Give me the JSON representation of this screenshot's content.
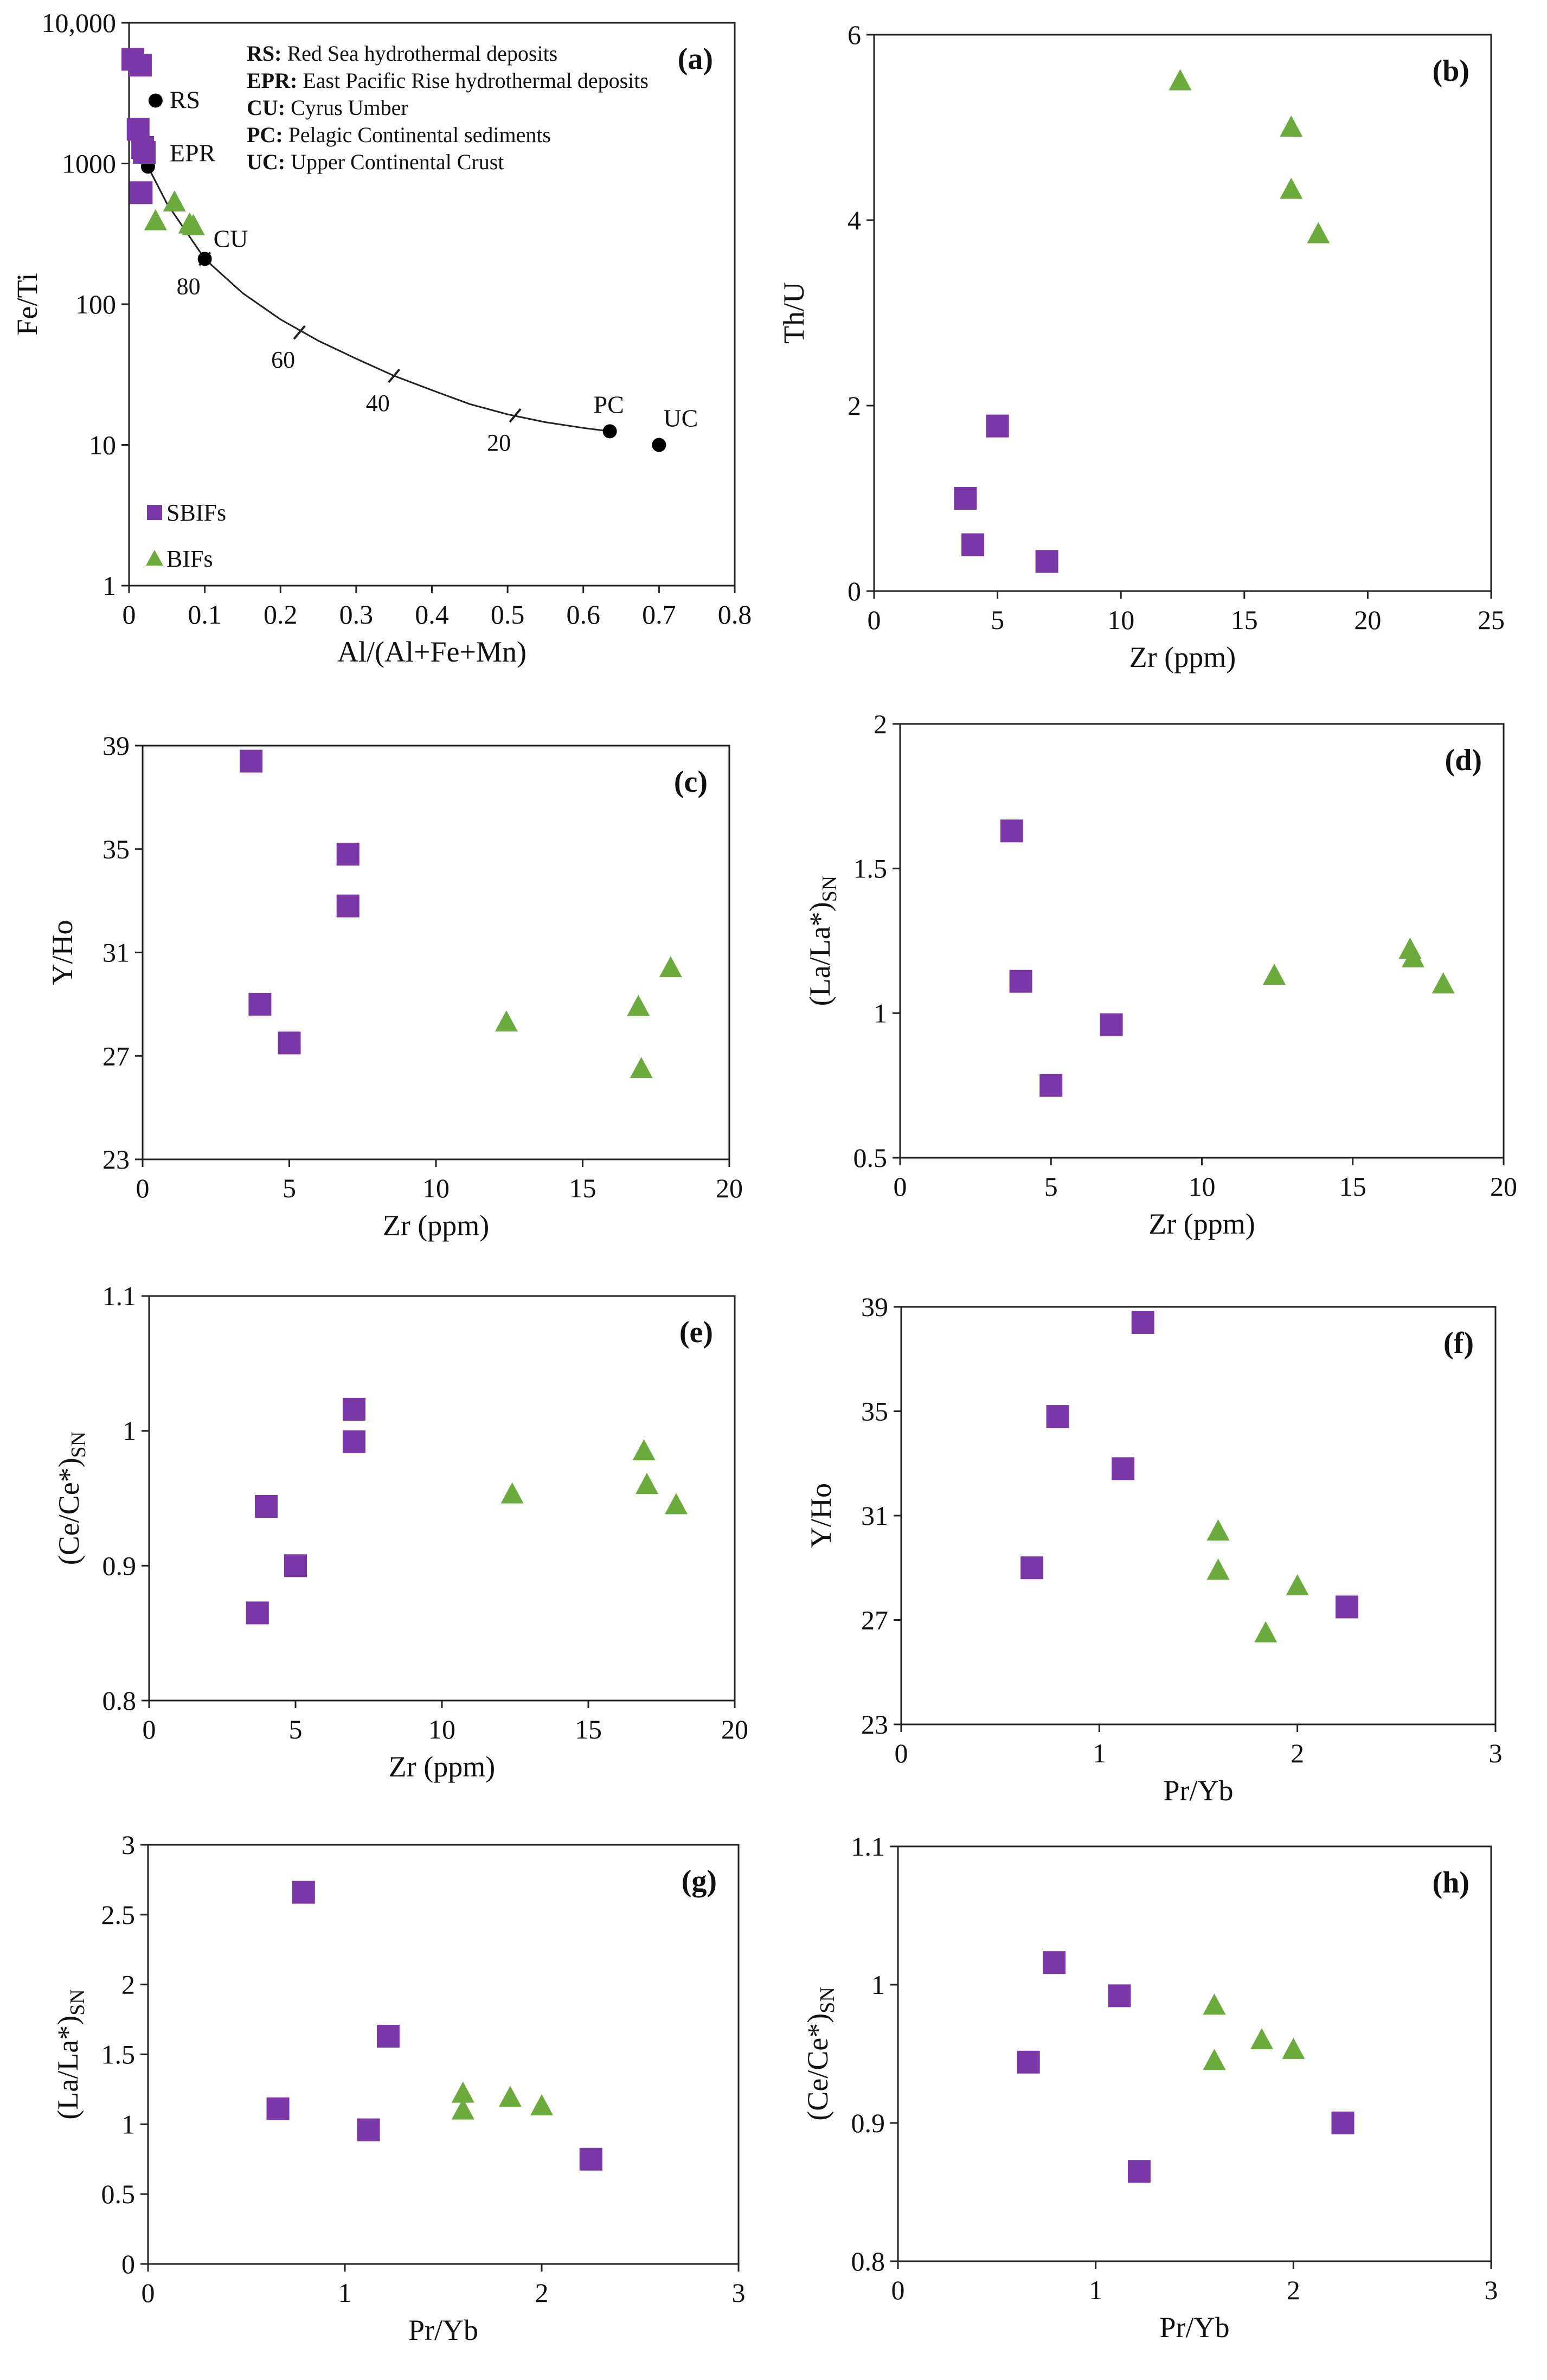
{
  "colors": {
    "sbif": "#7b36a8",
    "bif": "#6aab3c",
    "point": "#000000"
  },
  "chart_data": [
    {
      "type": "scatter",
      "tag": "(a)",
      "xlabel": "Al/(Al+Fe+Mn)",
      "ylabel": "Fe/Ti",
      "xlim": [
        0,
        0.8
      ],
      "ylim": [
        1,
        10000
      ],
      "log_y": true,
      "xticks": [
        0,
        0.1,
        0.2,
        0.3,
        0.4,
        0.5,
        0.6,
        0.7,
        0.8
      ],
      "yticks": [
        1,
        10,
        100,
        1000,
        10000
      ],
      "xtick_labels": [
        "0",
        "0.1",
        "0.2",
        "0.3",
        "0.4",
        "0.5",
        "0.6",
        "0.7",
        "0.8"
      ],
      "ytick_labels": [
        "1",
        "10",
        "100",
        "1000",
        "10,000"
      ],
      "legend_position": "bottom-left",
      "definitions": [
        {
          "key": "RS:",
          "text": "Red Sea hydrothermal deposits"
        },
        {
          "key": "EPR:",
          "text": "East Pacific Rise hydrothermal deposits"
        },
        {
          "key": "CU:",
          "text": "Cyrus Umber"
        },
        {
          "key": "PC:",
          "text": "Pelagic Continental sediments"
        },
        {
          "key": "UC:",
          "text": "Upper Continental Crust"
        }
      ],
      "reference_points": [
        {
          "label": "RS",
          "x": 0.035,
          "y": 2800
        },
        {
          "label": "EPR",
          "x": 0.025,
          "y": 950
        },
        {
          "label": "CU",
          "x": 0.1,
          "y": 210
        },
        {
          "label": "PC",
          "x": 0.635,
          "y": 12.5
        },
        {
          "label": "UC",
          "x": 0.7,
          "y": 10
        }
      ],
      "mixing_curve": [
        [
          0.025,
          950
        ],
        [
          0.05,
          520
        ],
        [
          0.1,
          210
        ],
        [
          0.15,
          120
        ],
        [
          0.2,
          78
        ],
        [
          0.25,
          55
        ],
        [
          0.3,
          41
        ],
        [
          0.35,
          31
        ],
        [
          0.4,
          24.5
        ],
        [
          0.45,
          19.5
        ],
        [
          0.5,
          16.5
        ],
        [
          0.55,
          14.5
        ],
        [
          0.6,
          13.2
        ],
        [
          0.635,
          12.5
        ]
      ],
      "curve_marks": [
        {
          "label": "80",
          "x": 0.1,
          "y": 210
        },
        {
          "label": "60",
          "x": 0.225,
          "y": 63
        },
        {
          "label": "40",
          "x": 0.35,
          "y": 31
        },
        {
          "label": "20",
          "x": 0.51,
          "y": 16.2
        }
      ],
      "series": [
        {
          "name": "SBIFs",
          "marker": "square",
          "points": [
            [
              0.005,
              5500
            ],
            [
              0.015,
              5000
            ],
            [
              0.012,
              1750
            ],
            [
              0.018,
              1300
            ],
            [
              0.02,
              1200
            ],
            [
              0.016,
              620
            ]
          ]
        },
        {
          "name": "BIFs",
          "marker": "triangle",
          "points": [
            [
              0.035,
              390
            ],
            [
              0.06,
              530
            ],
            [
              0.08,
              370
            ],
            [
              0.085,
              360
            ]
          ]
        }
      ]
    },
    {
      "type": "scatter",
      "tag": "(b)",
      "xlabel": "Zr (ppm)",
      "ylabel": "Th/U",
      "xlim": [
        0,
        25
      ],
      "ylim": [
        0,
        6
      ],
      "xticks": [
        0,
        5,
        10,
        15,
        20,
        25
      ],
      "yticks": [
        0,
        2,
        4,
        6
      ],
      "xtick_labels": [
        "0",
        "5",
        "10",
        "15",
        "20",
        "25"
      ],
      "ytick_labels": [
        "0",
        "2",
        "4",
        "6"
      ],
      "series": [
        {
          "name": "SBIFs",
          "marker": "square",
          "points": [
            [
              3.7,
              1.0
            ],
            [
              4.0,
              0.5
            ],
            [
              5.0,
              1.78
            ],
            [
              7.0,
              0.32
            ]
          ]
        },
        {
          "name": "BIFs",
          "marker": "triangle",
          "points": [
            [
              12.4,
              5.5
            ],
            [
              16.9,
              5.0
            ],
            [
              16.9,
              4.33
            ],
            [
              18.0,
              3.85
            ]
          ]
        }
      ]
    },
    {
      "type": "scatter",
      "tag": "(c)",
      "xlabel": "Zr (ppm)",
      "ylabel": "Y/Ho",
      "xlim": [
        0,
        20
      ],
      "ylim": [
        23,
        39
      ],
      "xticks": [
        0,
        5,
        10,
        15,
        20
      ],
      "yticks": [
        23,
        27,
        31,
        35,
        39
      ],
      "xtick_labels": [
        "0",
        "5",
        "10",
        "15",
        "20"
      ],
      "ytick_labels": [
        "23",
        "27",
        "31",
        "35",
        "39"
      ],
      "series": [
        {
          "name": "SBIFs",
          "marker": "square",
          "points": [
            [
              3.7,
              38.4
            ],
            [
              4.0,
              29.0
            ],
            [
              5.0,
              27.5
            ],
            [
              7.0,
              34.8
            ],
            [
              7.0,
              32.8
            ]
          ]
        },
        {
          "name": "BIFs",
          "marker": "triangle",
          "points": [
            [
              12.4,
              28.3
            ],
            [
              16.9,
              28.9
            ],
            [
              17.0,
              26.5
            ],
            [
              18.0,
              30.4
            ]
          ]
        }
      ]
    },
    {
      "type": "scatter",
      "tag": "(d)",
      "xlabel": "Zr (ppm)",
      "ylabel": "(La/La*)SN",
      "ylabel_main": "(La/La*)",
      "ylabel_sub": "SN",
      "xlim": [
        0,
        20
      ],
      "ylim": [
        0.5,
        2
      ],
      "xticks": [
        0,
        5,
        10,
        15,
        20
      ],
      "yticks": [
        0.5,
        1,
        1.5,
        2
      ],
      "xtick_labels": [
        "0",
        "5",
        "10",
        "15",
        "20"
      ],
      "ytick_labels": [
        "0.5",
        "1",
        "1.5",
        "2"
      ],
      "series": [
        {
          "name": "SBIFs",
          "marker": "square",
          "points": [
            [
              3.7,
              1.63
            ],
            [
              4.0,
              1.11
            ],
            [
              5.0,
              0.75
            ],
            [
              7.0,
              0.96
            ]
          ]
        },
        {
          "name": "BIFs",
          "marker": "triangle",
          "points": [
            [
              12.4,
              1.13
            ],
            [
              16.9,
              1.22
            ],
            [
              17.0,
              1.19
            ],
            [
              18.0,
              1.1
            ]
          ]
        }
      ]
    },
    {
      "type": "scatter",
      "tag": "(e)",
      "xlabel": "Zr (ppm)",
      "ylabel": "(Ce/Ce*)SN",
      "ylabel_main": "(Ce/Ce*)",
      "ylabel_sub": "SN",
      "xlim": [
        0,
        20
      ],
      "ylim": [
        0.8,
        1.1
      ],
      "xticks": [
        0,
        5,
        10,
        15,
        20
      ],
      "yticks": [
        0.8,
        0.9,
        1,
        1.1
      ],
      "xtick_labels": [
        "0",
        "5",
        "10",
        "15",
        "20"
      ],
      "ytick_labels": [
        "0.8",
        "0.9",
        "1",
        "1.1"
      ],
      "series": [
        {
          "name": "SBIFs",
          "marker": "square",
          "points": [
            [
              3.7,
              0.865
            ],
            [
              4.0,
              0.944
            ],
            [
              5.0,
              0.9
            ],
            [
              7.0,
              1.016
            ],
            [
              7.0,
              0.992
            ]
          ]
        },
        {
          "name": "BIFs",
          "marker": "triangle",
          "points": [
            [
              12.4,
              0.953
            ],
            [
              16.9,
              0.985
            ],
            [
              17.0,
              0.96
            ],
            [
              18.0,
              0.945
            ]
          ]
        }
      ]
    },
    {
      "type": "scatter",
      "tag": "(f)",
      "xlabel": "Pr/Yb",
      "ylabel": "Y/Ho",
      "xlim": [
        0,
        3
      ],
      "ylim": [
        23,
        39
      ],
      "xticks": [
        0,
        1,
        2,
        3
      ],
      "yticks": [
        23,
        27,
        31,
        35,
        39
      ],
      "xtick_labels": [
        "0",
        "1",
        "2",
        "3"
      ],
      "ytick_labels": [
        "23",
        "27",
        "31",
        "35",
        "39"
      ],
      "series": [
        {
          "name": "SBIFs",
          "marker": "square",
          "points": [
            [
              0.66,
              29.0
            ],
            [
              0.79,
              34.8
            ],
            [
              1.12,
              32.8
            ],
            [
              1.22,
              38.4
            ],
            [
              2.25,
              27.5
            ]
          ]
        },
        {
          "name": "BIFs",
          "marker": "triangle",
          "points": [
            [
              1.6,
              30.4
            ],
            [
              1.6,
              28.9
            ],
            [
              1.84,
              26.5
            ],
            [
              2.0,
              28.3
            ]
          ]
        }
      ]
    },
    {
      "type": "scatter",
      "tag": "(g)",
      "xlabel": "Pr/Yb",
      "ylabel": "(La/La*)SN",
      "ylabel_main": "(La/La*)",
      "ylabel_sub": "SN",
      "xlim": [
        0,
        3
      ],
      "ylim": [
        0,
        3
      ],
      "xticks": [
        0,
        1,
        2,
        3
      ],
      "yticks": [
        0,
        0.5,
        1,
        1.5,
        2,
        2.5,
        3
      ],
      "xtick_labels": [
        "0",
        "1",
        "2",
        "3"
      ],
      "ytick_labels": [
        "0",
        "0.5",
        "1",
        "1.5",
        "2",
        "2.5",
        "3"
      ],
      "series": [
        {
          "name": "SBIFs",
          "marker": "square",
          "points": [
            [
              0.66,
              1.11
            ],
            [
              0.79,
              2.66
            ],
            [
              1.12,
              0.96
            ],
            [
              1.22,
              1.63
            ],
            [
              2.25,
              0.75
            ]
          ]
        },
        {
          "name": "BIFs",
          "marker": "triangle",
          "points": [
            [
              1.6,
              1.22
            ],
            [
              1.6,
              1.1
            ],
            [
              1.84,
              1.19
            ],
            [
              2.0,
              1.13
            ]
          ]
        }
      ]
    },
    {
      "type": "scatter",
      "tag": "(h)",
      "xlabel": "Pr/Yb",
      "ylabel": "(Ce/Ce*)SN",
      "ylabel_main": "(Ce/Ce*)",
      "ylabel_sub": "SN",
      "xlim": [
        0,
        3
      ],
      "ylim": [
        0.8,
        1.1
      ],
      "xticks": [
        0,
        1,
        2,
        3
      ],
      "yticks": [
        0.8,
        0.9,
        1,
        1.1
      ],
      "xtick_labels": [
        "0",
        "1",
        "2",
        "3"
      ],
      "ytick_labels": [
        "0.8",
        "0.9",
        "1",
        "1.1"
      ],
      "series": [
        {
          "name": "SBIFs",
          "marker": "square",
          "points": [
            [
              0.66,
              0.944
            ],
            [
              0.79,
              1.016
            ],
            [
              1.12,
              0.992
            ],
            [
              1.22,
              0.865
            ],
            [
              2.25,
              0.9
            ]
          ]
        },
        {
          "name": "BIFs",
          "marker": "triangle",
          "points": [
            [
              1.6,
              0.985
            ],
            [
              1.6,
              0.945
            ],
            [
              1.84,
              0.96
            ],
            [
              2.0,
              0.953
            ]
          ]
        }
      ]
    }
  ]
}
